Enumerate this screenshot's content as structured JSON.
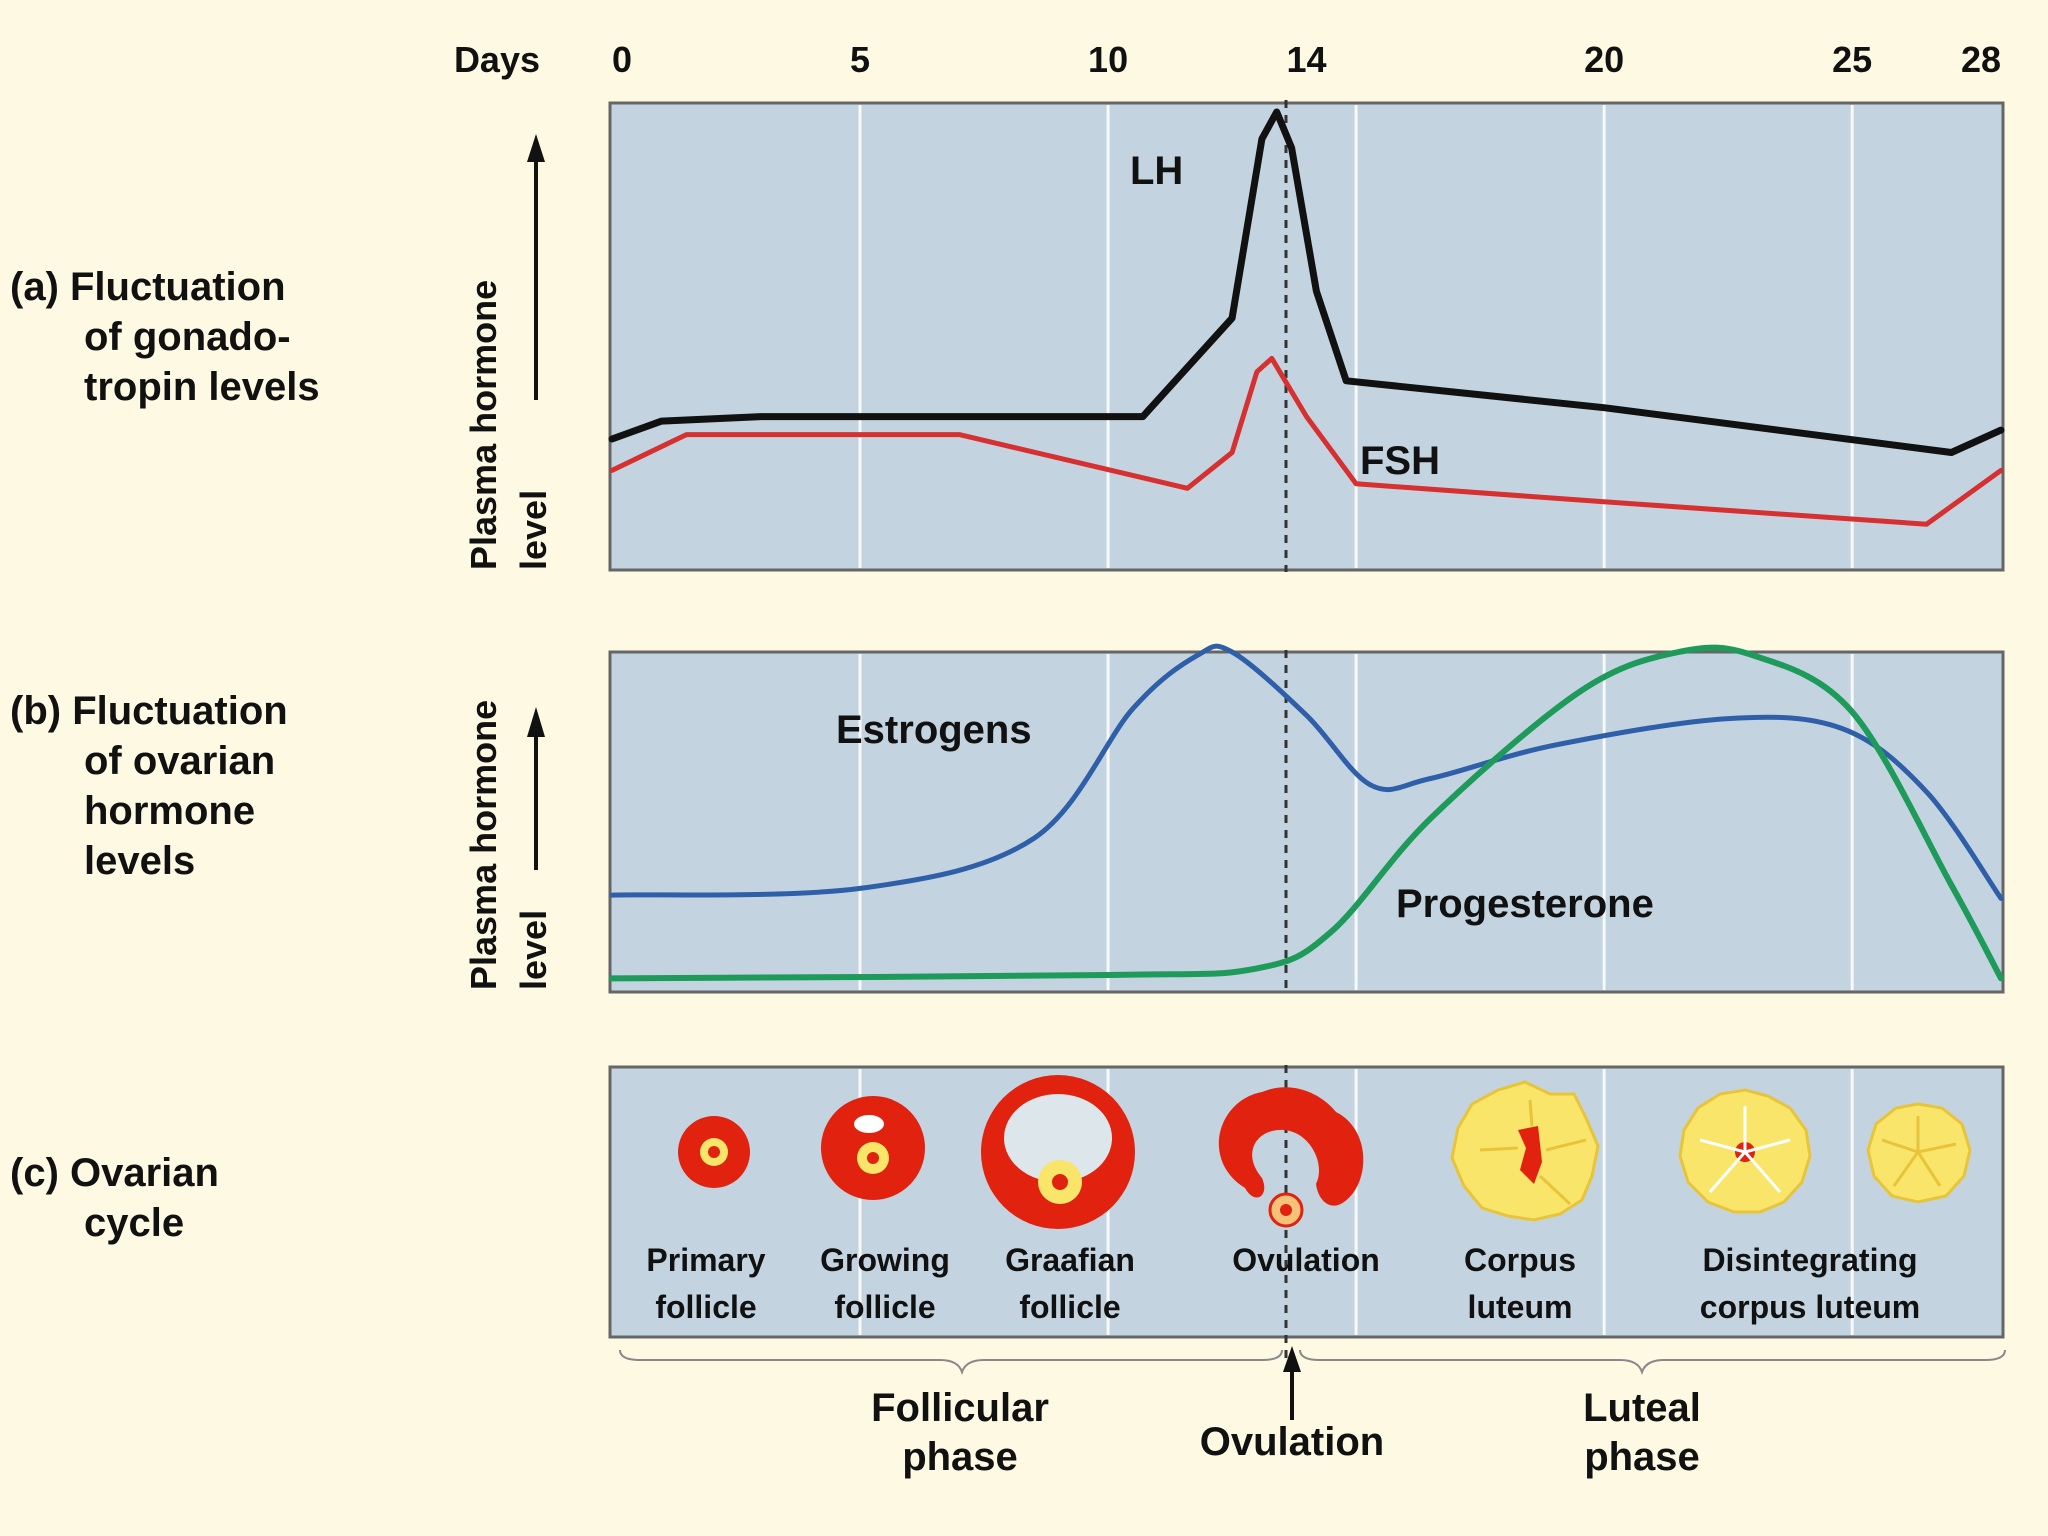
{
  "colors": {
    "background": "#fdf9e3",
    "panel": "#c3d4e0",
    "lh": "#111111",
    "fsh": "#d63030",
    "estrogens": "#2f5fa8",
    "progesterone": "#1e9a5a",
    "follicle_red": "#e0220f",
    "follicle_yellow": "#f9e56a"
  },
  "axis": {
    "days_label": "Days",
    "ticks": [
      "0",
      "5",
      "10",
      "14",
      "20",
      "25",
      "28"
    ],
    "y_label_line1": "Plasma hormone",
    "y_label_line2": "level"
  },
  "panel_a": {
    "label_lines": [
      "(a) Fluctuation",
      "of gonado-",
      "tropin levels"
    ],
    "lh_label": "LH",
    "fsh_label": "FSH"
  },
  "panel_b": {
    "label_lines": [
      "(b) Fluctuation",
      "of ovarian",
      "hormone",
      "levels"
    ],
    "estrogens_label": "Estrogens",
    "progesterone_label": "Progesterone"
  },
  "panel_c": {
    "label_lines": [
      "(c) Ovarian",
      "cycle"
    ],
    "stages": [
      {
        "line1": "Primary",
        "line2": "follicle"
      },
      {
        "line1": "Growing",
        "line2": "follicle"
      },
      {
        "line1": "Graafian",
        "line2": "follicle"
      },
      {
        "line1": "Ovulation",
        "line2": ""
      },
      {
        "line1": "Corpus",
        "line2": "luteum"
      },
      {
        "line1": "Disintegrating",
        "line2": "corpus luteum"
      }
    ]
  },
  "phases": {
    "follicular_line1": "Follicular",
    "follicular_line2": "phase",
    "ovulation": "Ovulation",
    "luteal_line1": "Luteal",
    "luteal_line2": "phase"
  },
  "chart_data": {
    "type": "line",
    "x_label": "Days",
    "x_range": [
      0,
      28
    ],
    "y_label": "Plasma hormone level (relative)",
    "panels": [
      {
        "name": "Fluctuation of gonadotropin levels",
        "series": [
          {
            "name": "LH",
            "points": [
              [
                0,
                0.27
              ],
              [
                1,
                0.31
              ],
              [
                3,
                0.32
              ],
              [
                7,
                0.32
              ],
              [
                10.7,
                0.32
              ],
              [
                12.5,
                0.54
              ],
              [
                13.1,
                0.94
              ],
              [
                13.4,
                1.0
              ],
              [
                13.7,
                0.92
              ],
              [
                14.2,
                0.6
              ],
              [
                14.8,
                0.4
              ],
              [
                20,
                0.34
              ],
              [
                27,
                0.24
              ],
              [
                28,
                0.29
              ]
            ]
          },
          {
            "name": "FSH",
            "points": [
              [
                0,
                0.2
              ],
              [
                1.5,
                0.28
              ],
              [
                7,
                0.28
              ],
              [
                11.6,
                0.16
              ],
              [
                12.5,
                0.24
              ],
              [
                13.0,
                0.42
              ],
              [
                13.3,
                0.45
              ],
              [
                14.0,
                0.32
              ],
              [
                15.0,
                0.17
              ],
              [
                20,
                0.13
              ],
              [
                26.5,
                0.08
              ],
              [
                28,
                0.2
              ]
            ]
          }
        ]
      },
      {
        "name": "Fluctuation of ovarian hormone levels",
        "series": [
          {
            "name": "Estrogens",
            "points": [
              [
                0,
                0.27
              ],
              [
                5,
                0.29
              ],
              [
                8.5,
                0.44
              ],
              [
                10.5,
                0.83
              ],
              [
                11.8,
                0.99
              ],
              [
                12.5,
                1.0
              ],
              [
                14,
                0.81
              ],
              [
                15.3,
                0.6
              ],
              [
                16.5,
                0.62
              ],
              [
                19,
                0.72
              ],
              [
                22.5,
                0.8
              ],
              [
                24.8,
                0.77
              ],
              [
                26.5,
                0.58
              ],
              [
                28,
                0.26
              ]
            ]
          },
          {
            "name": "Progesterone",
            "points": [
              [
                0,
                0.02
              ],
              [
                10,
                0.03
              ],
              [
                13.0,
                0.05
              ],
              [
                14.5,
                0.16
              ],
              [
                16.5,
                0.5
              ],
              [
                19.5,
                0.88
              ],
              [
                21.5,
                1.0
              ],
              [
                23,
                0.99
              ],
              [
                25,
                0.82
              ],
              [
                27,
                0.3
              ],
              [
                28,
                0.02
              ]
            ]
          }
        ]
      }
    ],
    "markers": [
      {
        "name": "Ovulation",
        "day": 14
      }
    ]
  }
}
